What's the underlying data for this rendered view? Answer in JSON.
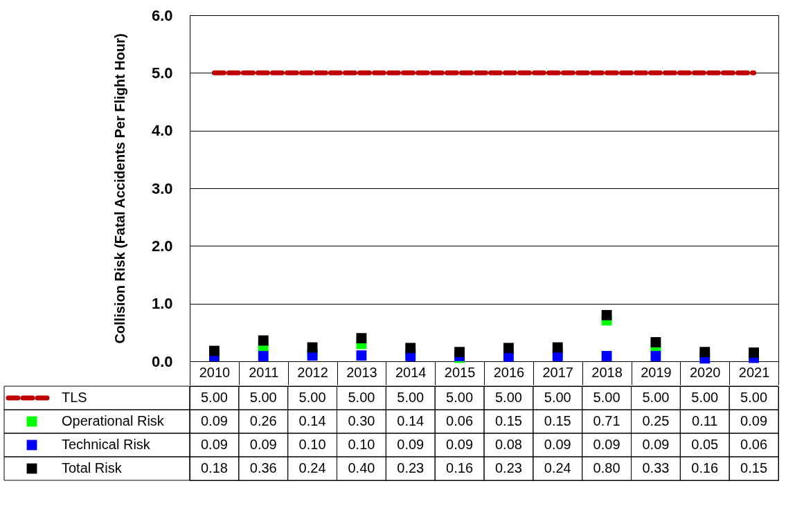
{
  "chart_data": {
    "type": "scatter",
    "ylabel": "Collision Risk (Fatal Accidents Per Flight Hour)",
    "categories": [
      "2010",
      "2011",
      "2012",
      "2013",
      "2014",
      "2015",
      "2016",
      "2017",
      "2018",
      "2019",
      "2020",
      "2021"
    ],
    "series": [
      {
        "name": "TLS",
        "type": "line",
        "line_style": "dashed",
        "color": "#c00000",
        "values": [
          5.0,
          5.0,
          5.0,
          5.0,
          5.0,
          5.0,
          5.0,
          5.0,
          5.0,
          5.0,
          5.0,
          5.0
        ],
        "value_labels": [
          "5.00",
          "5.00",
          "5.00",
          "5.00",
          "5.00",
          "5.00",
          "5.00",
          "5.00",
          "5.00",
          "5.00",
          "5.00",
          "5.00"
        ]
      },
      {
        "name": "Operational Risk",
        "marker": "square",
        "color": "#00ff00",
        "values": [
          0.09,
          0.26,
          0.14,
          0.3,
          0.14,
          0.06,
          null,
          0.15,
          0.71,
          0.25,
          0.11,
          null
        ],
        "value_labels": [
          "0.09",
          "0.26",
          "0.14",
          "0.30",
          "0.14",
          "0.06",
          "0.15",
          "0.15",
          "0.71",
          "0.25",
          "0.11",
          "0.09"
        ]
      },
      {
        "name": "Technical Risk",
        "marker": "square",
        "color": "#0000ff",
        "values": [
          0.09,
          0.09,
          0.1,
          0.1,
          0.09,
          0.09,
          0.08,
          0.09,
          0.09,
          0.09,
          0.05,
          0.06
        ],
        "value_labels": [
          "0.09",
          "0.09",
          "0.10",
          "0.10",
          "0.09",
          "0.09",
          "0.08",
          "0.09",
          "0.09",
          "0.09",
          "0.05",
          "0.06"
        ]
      },
      {
        "name": "Total Risk",
        "marker": "square",
        "color": "#000000",
        "values": [
          0.18,
          0.36,
          0.24,
          0.4,
          0.23,
          0.16,
          0.23,
          0.24,
          0.8,
          0.33,
          0.16,
          0.15
        ],
        "value_labels": [
          "0.18",
          "0.36",
          "0.24",
          "0.40",
          "0.23",
          "0.16",
          "0.23",
          "0.24",
          "0.80",
          "0.33",
          "0.16",
          "0.15"
        ]
      }
    ],
    "ylim": [
      0,
      6
    ],
    "yticks": [
      {
        "value": 0,
        "label": "0.0"
      },
      {
        "value": 1,
        "label": "1.0"
      },
      {
        "value": 2,
        "label": "2.0"
      },
      {
        "value": 3,
        "label": "3.0"
      },
      {
        "value": 4,
        "label": "4.0"
      },
      {
        "value": 5,
        "label": "5.0"
      },
      {
        "value": 6,
        "label": "6.0"
      }
    ],
    "grid": "y",
    "legend": "bottom"
  }
}
